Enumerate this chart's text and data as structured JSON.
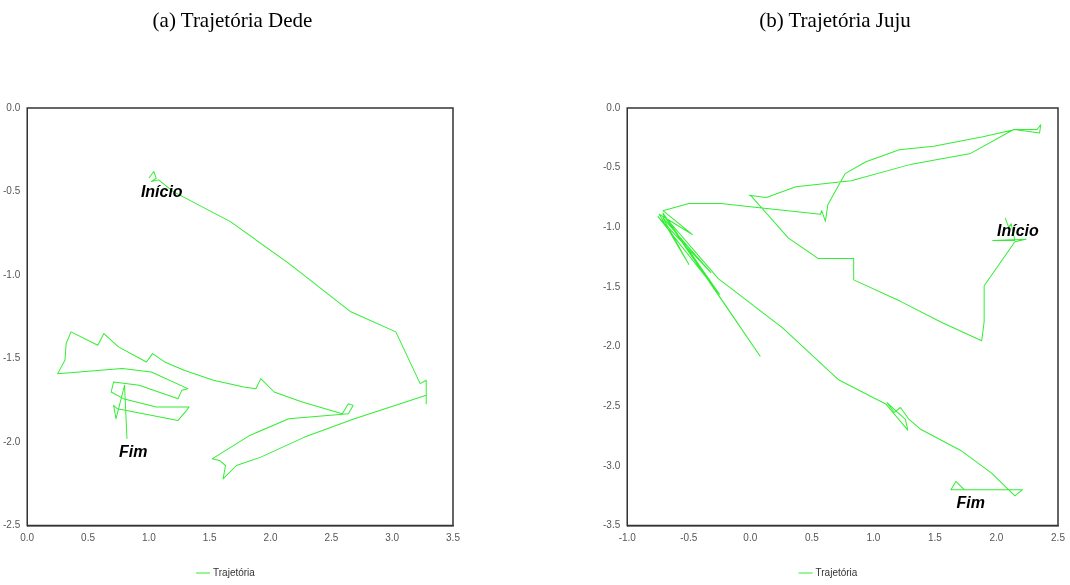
{
  "chart_data": [
    {
      "type": "line",
      "title": "(a) Trajetória Dede",
      "legend": "bottom",
      "marker": "none",
      "xlim": [
        0,
        3.5
      ],
      "ylim": [
        -2.5,
        0
      ],
      "xticks": [
        {
          "value": 0,
          "label": "0.0"
        },
        {
          "value": 0.5,
          "label": "0.5"
        },
        {
          "value": 1,
          "label": "1.0"
        },
        {
          "value": 1.5,
          "label": "1.5"
        },
        {
          "value": 2,
          "label": "2.0"
        },
        {
          "value": 2.5,
          "label": "2.5"
        },
        {
          "value": 3,
          "label": "3.0"
        },
        {
          "value": 3.5,
          "label": "3.5"
        }
      ],
      "yticks": [
        {
          "value": -2.5,
          "label": "-2.5"
        },
        {
          "value": -2,
          "label": "-2.0"
        },
        {
          "value": -1.5,
          "label": "-1.5"
        },
        {
          "value": -1,
          "label": "-1.0"
        },
        {
          "value": -0.5,
          "label": "-0.5"
        },
        {
          "value": 0,
          "label": "0.0"
        }
      ],
      "annotations": [
        {
          "text": "Início",
          "x": 1.0,
          "y": -0.42
        },
        {
          "text": "Fim",
          "x": 0.82,
          "y": -1.98
        }
      ],
      "series": [
        {
          "name": "Trajetória",
          "color": "#33ee33",
          "x": [
            1.0,
            1.04,
            1.06,
            1.02,
            1.08,
            1.2,
            1.67,
            2.15,
            2.66,
            3.03,
            3.23,
            3.28,
            3.28,
            3.28,
            2.69,
            2.28,
            1.92,
            1.72,
            1.61,
            1.63,
            1.58,
            1.52,
            1.83,
            2.15,
            2.64,
            2.68,
            2.64,
            2.59,
            2.26,
            2.03,
            1.92,
            1.88,
            1.78,
            1.53,
            1.29,
            1.13,
            1.03,
            0.98,
            0.75,
            0.63,
            0.58,
            0.36,
            0.32,
            0.31,
            0.25,
            0.78,
            1.02,
            1.32,
            1.27,
            1.24,
            0.92,
            0.71,
            0.69,
            0.79,
            1.06,
            1.33,
            1.31,
            1.24,
            0.88,
            0.74,
            0.71,
            0.73,
            0.8,
            0.82
          ],
          "values": [
            -0.42,
            -0.38,
            -0.42,
            -0.44,
            -0.43,
            -0.5,
            -0.68,
            -0.93,
            -1.22,
            -1.34,
            -1.65,
            -1.63,
            -1.77,
            -1.72,
            -1.86,
            -1.97,
            -2.09,
            -2.14,
            -2.22,
            -2.14,
            -2.11,
            -2.1,
            -1.96,
            -1.86,
            -1.83,
            -1.78,
            -1.77,
            -1.83,
            -1.76,
            -1.7,
            -1.62,
            -1.68,
            -1.67,
            -1.63,
            -1.57,
            -1.52,
            -1.47,
            -1.52,
            -1.43,
            -1.35,
            -1.42,
            -1.34,
            -1.41,
            -1.51,
            -1.59,
            -1.56,
            -1.58,
            -1.68,
            -1.69,
            -1.74,
            -1.66,
            -1.64,
            -1.7,
            -1.74,
            -1.79,
            -1.79,
            -1.81,
            -1.87,
            -1.82,
            -1.8,
            -1.78,
            -1.86,
            -1.66,
            -1.98
          ]
        }
      ]
    },
    {
      "type": "line",
      "title": "(b) Trajetória Juju",
      "legend": "bottom",
      "marker": "none",
      "xlim": [
        -1,
        2.5
      ],
      "ylim": [
        -3.5,
        0
      ],
      "xticks": [
        {
          "value": -1,
          "label": "-1.0"
        },
        {
          "value": -0.5,
          "label": "-0.5"
        },
        {
          "value": 0,
          "label": "0.0"
        },
        {
          "value": 0.5,
          "label": "0.5"
        },
        {
          "value": 1,
          "label": "1.0"
        },
        {
          "value": 1.5,
          "label": "1.5"
        },
        {
          "value": 2,
          "label": "2.0"
        },
        {
          "value": 2.5,
          "label": "2.5"
        }
      ],
      "yticks": [
        {
          "value": -3.5,
          "label": "-3.5"
        },
        {
          "value": -3,
          "label": "-3.0"
        },
        {
          "value": -2.5,
          "label": "-2.5"
        },
        {
          "value": -2,
          "label": "-2.0"
        },
        {
          "value": -1.5,
          "label": "-1.5"
        },
        {
          "value": -1,
          "label": "-1.0"
        },
        {
          "value": -0.5,
          "label": "-0.5"
        },
        {
          "value": 0,
          "label": "0.0"
        }
      ],
      "annotations": [
        {
          "text": "Início",
          "x": 2.07,
          "y": -0.92
        },
        {
          "text": "Fim",
          "x": 1.74,
          "y": -3.2
        }
      ],
      "series": [
        {
          "name": "Trajetória",
          "color": "#33ee33",
          "x": [
            2.07,
            2.1,
            2.12,
            2.15,
            1.97,
            2.24,
            2.15,
            1.9,
            1.9,
            1.88,
            1.56,
            1.22,
            0.84,
            0.84,
            0.55,
            0.31,
            0.01,
            -0.01,
            0.13,
            0.37,
            0.82,
            1.31,
            1.79,
            2.14,
            2.33,
            2.36,
            2.35,
            2.15,
            1.89,
            1.49,
            1.21,
            0.94,
            0.77,
            0.63,
            0.61,
            0.58,
            0.57,
            -0.24,
            -0.5,
            -0.71,
            -0.47,
            -0.74,
            -0.5,
            -0.71,
            -0.32,
            -0.75,
            -0.25,
            -0.71,
            0.08,
            -0.71,
            -0.26,
            0.26,
            0.72,
            1.1,
            1.28,
            1.26,
            1.11,
            1.17,
            1.22,
            1.29,
            1.38,
            1.71,
            1.96,
            2.15,
            2.21,
            1.74,
            1.67,
            1.63,
            1.74
          ],
          "values": [
            -0.92,
            -1.0,
            -0.97,
            -1.11,
            -1.11,
            -1.1,
            -1.12,
            -1.49,
            -1.79,
            -1.95,
            -1.8,
            -1.62,
            -1.44,
            -1.26,
            -1.26,
            -1.09,
            -0.74,
            -0.73,
            -0.75,
            -0.66,
            -0.61,
            -0.47,
            -0.38,
            -0.18,
            -0.18,
            -0.14,
            -0.21,
            -0.18,
            -0.24,
            -0.32,
            -0.35,
            -0.45,
            -0.55,
            -0.81,
            -0.95,
            -0.86,
            -0.89,
            -0.8,
            -0.8,
            -0.86,
            -1.06,
            -0.89,
            -1.31,
            -0.92,
            -1.38,
            -0.91,
            -1.56,
            -0.88,
            -2.08,
            -0.89,
            -1.43,
            -1.84,
            -2.28,
            -2.48,
            -2.7,
            -2.61,
            -2.47,
            -2.55,
            -2.51,
            -2.61,
            -2.69,
            -2.87,
            -3.06,
            -3.25,
            -3.2,
            -3.2,
            -3.13,
            -3.2,
            -3.2
          ]
        }
      ]
    }
  ]
}
